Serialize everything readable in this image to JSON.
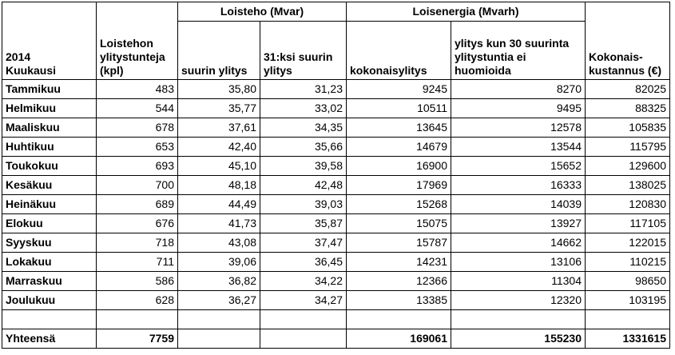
{
  "header": {
    "year_month": "2014\nKuukausi",
    "hours": "Loistehon ylitystunteja (kpl)",
    "group_power": "Loisteho (Mvar)",
    "group_energy": "Loisenergia (Mvarh)",
    "max_exceed": "suurin ylitys",
    "max31": "31:ksi suurin ylitys",
    "total_exceed": "kokonaisylitys",
    "exceed_excl": "ylitys kun 30 suurinta ylitystuntia ei huomioida",
    "total_cost": "Kokonais-kustannus (€)"
  },
  "rows": [
    {
      "month": "Tammikuu",
      "hours": "483",
      "max": "35,80",
      "max31": "31,23",
      "total": "9245",
      "excl": "8270",
      "cost": "82025"
    },
    {
      "month": "Helmikuu",
      "hours": "544",
      "max": "35,77",
      "max31": "33,02",
      "total": "10511",
      "excl": "9495",
      "cost": "88325"
    },
    {
      "month": "Maaliskuu",
      "hours": "678",
      "max": "37,61",
      "max31": "34,35",
      "total": "13645",
      "excl": "12578",
      "cost": "105835"
    },
    {
      "month": "Huhtikuu",
      "hours": "653",
      "max": "42,40",
      "max31": "35,66",
      "total": "14679",
      "excl": "13544",
      "cost": "115795"
    },
    {
      "month": "Toukokuu",
      "hours": "693",
      "max": "45,10",
      "max31": "39,58",
      "total": "16900",
      "excl": "15652",
      "cost": "129600"
    },
    {
      "month": "Kesäkuu",
      "hours": "700",
      "max": "48,18",
      "max31": "42,48",
      "total": "17969",
      "excl": "16333",
      "cost": "138025"
    },
    {
      "month": "Heinäkuu",
      "hours": "689",
      "max": "44,49",
      "max31": "39,03",
      "total": "15268",
      "excl": "14039",
      "cost": "120830"
    },
    {
      "month": "Elokuu",
      "hours": "676",
      "max": "41,73",
      "max31": "35,87",
      "total": "15075",
      "excl": "13927",
      "cost": "117105"
    },
    {
      "month": "Syyskuu",
      "hours": "718",
      "max": "43,08",
      "max31": "37,47",
      "total": "15787",
      "excl": "14662",
      "cost": "122015"
    },
    {
      "month": "Lokakuu",
      "hours": "711",
      "max": "39,06",
      "max31": "36,45",
      "total": "14231",
      "excl": "13106",
      "cost": "110215"
    },
    {
      "month": "Marraskuu",
      "hours": "586",
      "max": "36,82",
      "max31": "34,22",
      "total": "12366",
      "excl": "11304",
      "cost": "98650"
    },
    {
      "month": "Joulukuu",
      "hours": "628",
      "max": "36,27",
      "max31": "34,27",
      "total": "13385",
      "excl": "12320",
      "cost": "103195"
    }
  ],
  "totals": {
    "label": "Yhteensä",
    "hours": "7759",
    "total": "169061",
    "excl": "155230",
    "cost": "1331615"
  }
}
